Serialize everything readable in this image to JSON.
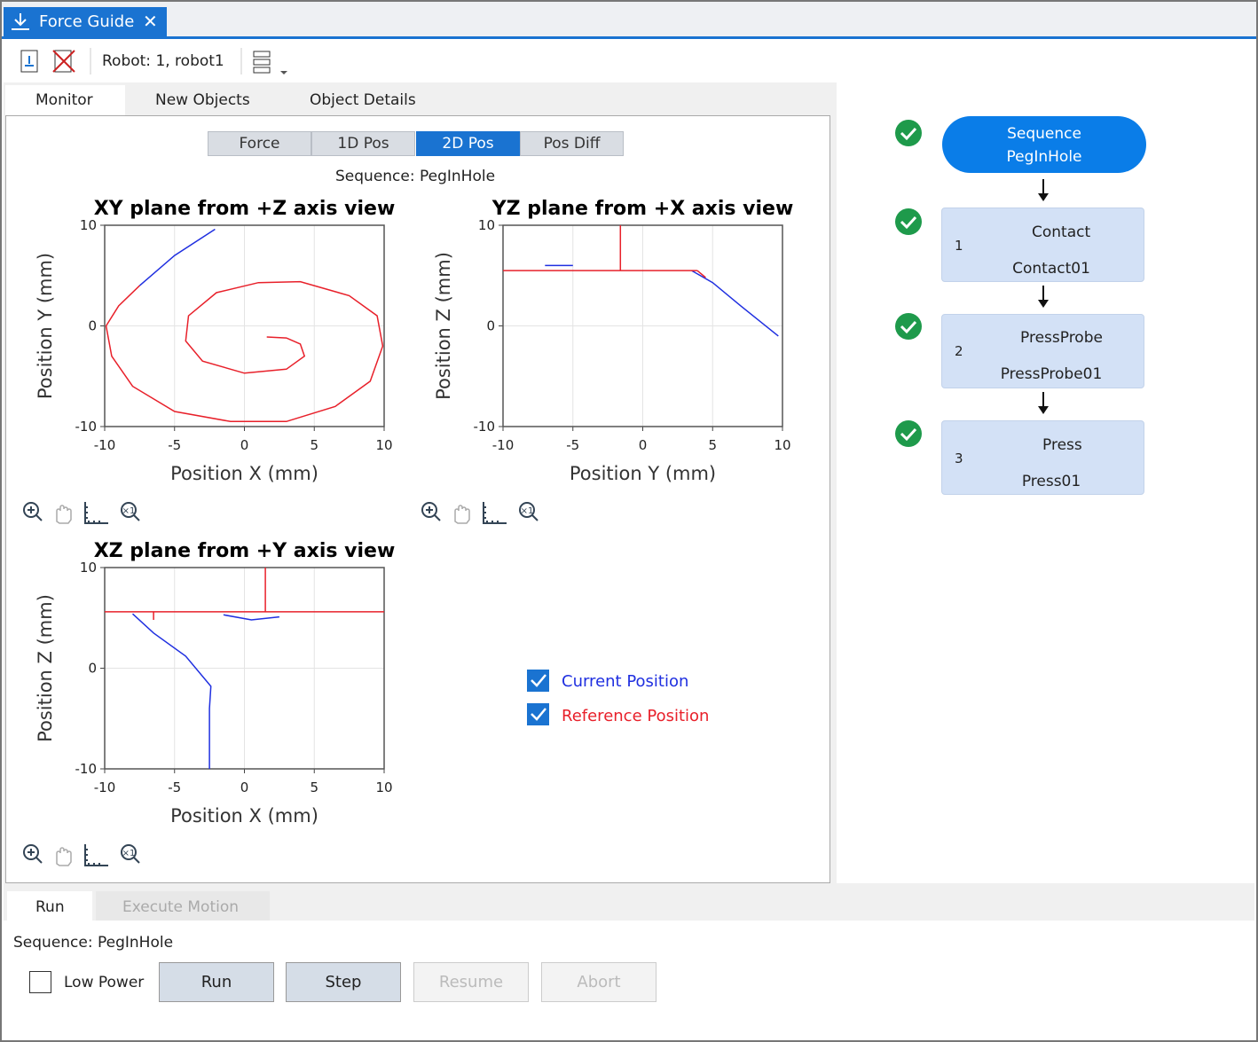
{
  "window_tab": "Force Guide",
  "toolbar": {
    "robot": "Robot: 1, robot1"
  },
  "monitor_tabs": [
    "Monitor",
    "New Objects",
    "Object Details"
  ],
  "view_buttons": [
    "Force",
    "1D Pos",
    "2D Pos",
    "Pos Diff"
  ],
  "sequence_caption": "Sequence: PegInHole",
  "chart_data": [
    {
      "type": "line",
      "title": "XY plane from +Z axis view",
      "x_label": "Position X (mm)",
      "y_label": "Position Y (mm)",
      "xlim": [
        -10,
        10
      ],
      "ylim": [
        -10,
        10
      ],
      "xticks": [
        -10,
        -5,
        0,
        5,
        10
      ],
      "yticks": [
        -10,
        0,
        10
      ],
      "grid": true,
      "series": [
        {
          "name": "Current Position",
          "color": "#1f2fe0",
          "x": [
            -2.1,
            -5,
            -7.5
          ],
          "values": [
            9.6,
            7,
            4
          ]
        },
        {
          "name": "Reference Position",
          "color": "#e8202a",
          "x": [
            -7.5,
            -9,
            -9.9,
            -9.5,
            -8,
            -5,
            -1,
            3,
            6.5,
            9,
            9.9,
            9.5,
            7.5,
            4,
            1,
            -2,
            -4,
            -4.2,
            -3,
            0,
            3,
            4.3,
            4,
            3,
            1.6
          ],
          "values": [
            4,
            2,
            0,
            -3,
            -6,
            -8.5,
            -9.5,
            -9.5,
            -8,
            -5.5,
            -2,
            1,
            3,
            4.4,
            4.3,
            3.3,
            1,
            -1.5,
            -3.5,
            -4.7,
            -4.3,
            -3,
            -1.8,
            -1.2,
            -1.1
          ]
        }
      ]
    },
    {
      "type": "line",
      "title": "YZ plane from +X axis view",
      "x_label": "Position Y (mm)",
      "y_label": "Position Z (mm)",
      "xlim": [
        -10,
        10
      ],
      "ylim": [
        -10,
        10
      ],
      "xticks": [
        -10,
        -5,
        0,
        5,
        10
      ],
      "yticks": [
        -10,
        0,
        10
      ],
      "grid": true,
      "series": [
        {
          "color": "#1f2fe0",
          "x": [
            -7,
            -5,
            null,
            3.5,
            5,
            7,
            9.7
          ],
          "values": [
            6,
            6,
            null,
            5.5,
            4.3,
            2,
            -1
          ]
        },
        {
          "color": "#e8202a",
          "x": [
            -10,
            3.9,
            null,
            -1.6,
            -1.6,
            null,
            3.9,
            4.5
          ],
          "values": [
            5.5,
            5.5,
            null,
            10,
            5.5,
            null,
            5.5,
            4.8
          ]
        }
      ]
    },
    {
      "type": "line",
      "title": "XZ plane from +Y axis view",
      "x_label": "Position X (mm)",
      "y_label": "Position Z (mm)",
      "xlim": [
        -10,
        10
      ],
      "ylim": [
        -10,
        10
      ],
      "xticks": [
        -10,
        -5,
        0,
        5,
        10
      ],
      "yticks": [
        -10,
        0,
        10
      ],
      "grid": true,
      "series": [
        {
          "color": "#1f2fe0",
          "x": [
            -8,
            -6.5,
            -4.2,
            -2.4,
            -2.5,
            -2.5,
            null,
            -1.5,
            0.5,
            2.5
          ],
          "values": [
            5.4,
            3.5,
            1.2,
            -1.8,
            -4,
            -10,
            null,
            5.3,
            4.8,
            5.1
          ]
        },
        {
          "color": "#e8202a",
          "x": [
            -10,
            10,
            null,
            1.5,
            1.5,
            null,
            -6.5,
            -6.5
          ],
          "values": [
            5.6,
            5.6,
            null,
            10,
            5.6,
            null,
            5.6,
            4.8
          ]
        }
      ]
    }
  ],
  "flow": {
    "start": [
      "Sequence",
      "PegInHole"
    ],
    "steps": [
      {
        "number": 1,
        "name": "Contact",
        "object": "Contact01"
      },
      {
        "number": 2,
        "name": "PressProbe",
        "object": "PressProbe01"
      },
      {
        "number": 3,
        "name": "Press",
        "object": "Press01"
      }
    ]
  },
  "run_tabs": [
    "Run",
    "Execute Motion"
  ],
  "run_sequence": "Sequence: PegInHole",
  "low_power": "Low Power",
  "buttons": [
    "Run",
    "Step",
    "Resume",
    "Abort"
  ]
}
